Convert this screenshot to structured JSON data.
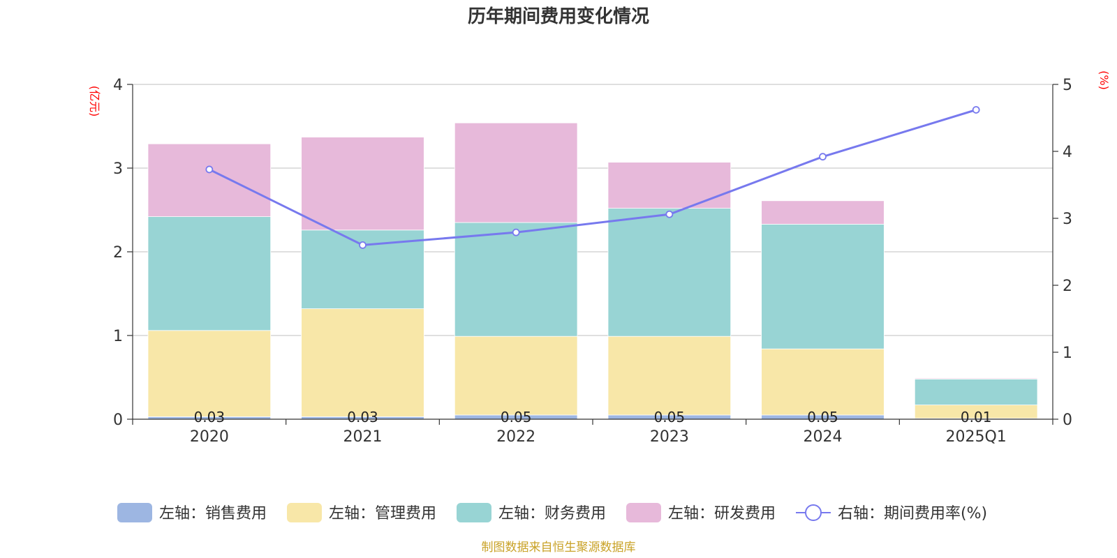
{
  "chart_data": {
    "type": "bar",
    "title": "历年期间费用变化情况",
    "categories": [
      "2020",
      "2021",
      "2022",
      "2023",
      "2024",
      "2025Q1"
    ],
    "left_axis": {
      "unit": "(亿元)",
      "ylim": [
        0,
        4
      ],
      "ticks": [
        "0",
        "1",
        "2",
        "3",
        "4"
      ]
    },
    "right_axis": {
      "unit": "(%)",
      "ylim": [
        0,
        5
      ],
      "ticks": [
        "0",
        "1",
        "2",
        "3",
        "4",
        "5"
      ]
    },
    "stacked": true,
    "grid": true,
    "legend_position": "bottom",
    "series": [
      {
        "name": "左轴：销售费用",
        "axis": "left",
        "type": "bar",
        "color": "#9db6e2",
        "values": [
          0.03,
          0.03,
          0.05,
          0.05,
          0.05,
          0.01
        ],
        "labels": [
          "0.03",
          "0.03",
          "0.05",
          "0.05",
          "0.05",
          "0.01"
        ]
      },
      {
        "name": "左轴：管理费用",
        "axis": "left",
        "type": "bar",
        "color": "#f8e7a8",
        "values": [
          1.03,
          1.29,
          0.94,
          0.94,
          0.79,
          0.16
        ]
      },
      {
        "name": "左轴：财务费用",
        "axis": "left",
        "type": "bar",
        "color": "#98d4d4",
        "values": [
          1.36,
          0.94,
          1.36,
          1.53,
          1.49,
          0.31
        ]
      },
      {
        "name": "左轴：研发费用",
        "axis": "left",
        "type": "bar",
        "color": "#e7b9da",
        "values": [
          0.87,
          1.11,
          1.19,
          0.55,
          0.28,
          0.01
        ]
      },
      {
        "name": "右轴：期间费用率(%)",
        "axis": "right",
        "type": "line",
        "color": "#7779ee",
        "values": [
          3.73,
          2.6,
          2.79,
          3.06,
          3.92,
          4.62
        ]
      }
    ]
  },
  "footer": {
    "source": "制图数据来自恒生聚源数据库"
  }
}
